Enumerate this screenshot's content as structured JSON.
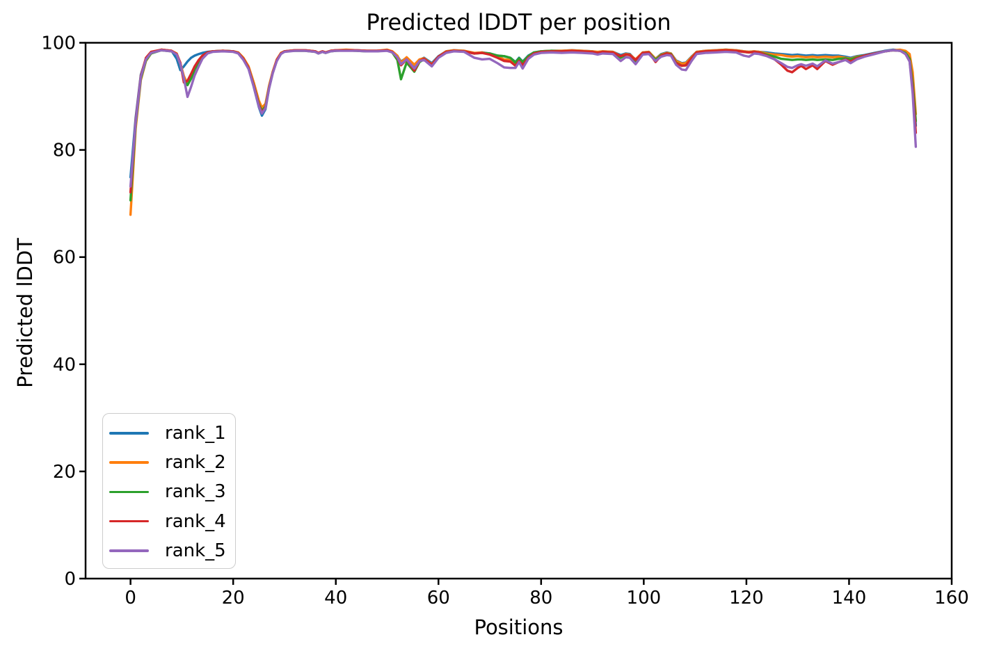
{
  "chart_data": {
    "type": "line",
    "title": "Predicted lDDT per position",
    "xlabel": "Positions",
    "ylabel": "Predicted lDDT",
    "xlim": [
      -8.76,
      160.0
    ],
    "ylim": [
      0,
      100
    ],
    "x_ticks": [
      0,
      20,
      40,
      60,
      80,
      100,
      120,
      140,
      160
    ],
    "y_ticks": [
      0,
      20,
      40,
      60,
      80,
      100
    ],
    "grid": false,
    "legend_position": "lower left",
    "x": [
      0,
      1,
      2,
      3,
      4,
      6,
      8,
      9,
      9.7,
      10.4,
      11.1,
      11.8,
      12.5,
      13.3,
      14,
      15,
      16,
      18,
      20,
      21,
      22,
      23,
      24,
      25,
      25.6,
      26.3,
      27,
      27.7,
      28.5,
      29.3,
      30,
      32,
      34,
      36,
      36.6,
      37.4,
      38,
      39,
      40,
      42,
      44,
      46,
      48,
      50,
      51,
      52,
      52.7,
      53.8,
      55.3,
      56.3,
      57.2,
      58.7,
      60,
      61.5,
      63,
      65,
      67,
      68.5,
      70,
      71.5,
      72.8,
      74,
      75,
      75.7,
      76.4,
      77.5,
      78.6,
      80,
      82,
      84,
      86,
      88,
      90,
      91,
      92,
      94,
      95.5,
      96.5,
      97.3,
      98.4,
      99.8,
      101,
      102.3,
      103.4,
      104.5,
      105.3,
      106.3,
      107.4,
      108.2,
      109.3,
      110.3,
      112,
      114,
      116,
      118,
      119.5,
      120.5,
      121.5,
      122.5,
      124,
      125.5,
      126.8,
      128,
      128.9,
      130,
      130.7,
      131.6,
      132.9,
      133.8,
      135.4,
      136.8,
      138,
      139.3,
      140.3,
      141.5,
      143,
      145,
      147,
      148.5,
      150,
      151,
      151.8,
      152.4,
      153
    ],
    "series": [
      {
        "name": "rank_1",
        "color": "#1f77b4",
        "values": [
          74.9,
          86.0,
          94.0,
          97.0,
          98.2,
          98.7,
          98.5,
          97.0,
          94.9,
          95.6,
          96.5,
          97.2,
          97.6,
          97.9,
          98.1,
          98.3,
          98.4,
          98.5,
          98.4,
          98.1,
          96.9,
          95.2,
          91.8,
          88.0,
          86.4,
          87.6,
          91.5,
          94.3,
          96.7,
          98.0,
          98.4,
          98.6,
          98.6,
          98.4,
          98.1,
          98.4,
          98.2,
          98.5,
          98.6,
          98.6,
          98.6,
          98.5,
          98.5,
          98.6,
          98.3,
          97.5,
          96.5,
          97.2,
          95.6,
          96.8,
          97.2,
          96.2,
          97.5,
          98.4,
          98.6,
          98.5,
          98.0,
          98.2,
          98.0,
          97.6,
          97.5,
          97.2,
          96.4,
          97.2,
          96.5,
          97.6,
          98.2,
          98.4,
          98.5,
          98.5,
          98.6,
          98.5,
          98.4,
          98.2,
          98.4,
          98.3,
          97.7,
          98.0,
          97.9,
          96.8,
          98.2,
          98.3,
          97.0,
          97.9,
          98.2,
          98.0,
          96.7,
          96.2,
          96.3,
          97.4,
          98.3,
          98.5,
          98.6,
          98.7,
          98.6,
          98.4,
          98.3,
          98.4,
          98.3,
          98.2,
          98.0,
          97.9,
          97.8,
          97.7,
          97.8,
          97.7,
          97.6,
          97.7,
          97.6,
          97.7,
          97.6,
          97.6,
          97.4,
          97.2,
          97.5,
          97.7,
          98.1,
          98.5,
          98.7,
          98.6,
          98.2,
          97.2,
          93.0,
          84.5
        ]
      },
      {
        "name": "rank_2",
        "color": "#ff7f0e",
        "values": [
          67.9,
          84.0,
          93.0,
          96.6,
          98.0,
          98.7,
          98.5,
          98.0,
          96.2,
          93.8,
          92.3,
          93.5,
          95.2,
          96.6,
          97.5,
          98.2,
          98.4,
          98.5,
          98.4,
          98.2,
          97.2,
          95.6,
          92.6,
          89.2,
          87.9,
          88.6,
          92.0,
          94.6,
          96.9,
          98.1,
          98.4,
          98.6,
          98.6,
          98.4,
          98.1,
          98.4,
          98.2,
          98.5,
          98.6,
          98.7,
          98.6,
          98.5,
          98.5,
          98.7,
          98.4,
          97.6,
          96.3,
          97.3,
          95.9,
          96.9,
          97.1,
          96.0,
          97.4,
          98.4,
          98.6,
          98.5,
          98.1,
          98.2,
          97.9,
          97.4,
          96.9,
          96.8,
          96.0,
          96.9,
          96.1,
          97.4,
          98.1,
          98.4,
          98.5,
          98.5,
          98.6,
          98.5,
          98.4,
          98.3,
          98.4,
          98.3,
          97.5,
          97.9,
          97.8,
          96.9,
          98.2,
          98.3,
          97.0,
          97.8,
          98.1,
          98.0,
          96.6,
          96.1,
          96.2,
          97.3,
          98.3,
          98.5,
          98.6,
          98.7,
          98.6,
          98.4,
          98.3,
          98.4,
          98.3,
          98.0,
          97.8,
          97.7,
          97.5,
          97.4,
          97.5,
          97.4,
          97.3,
          97.4,
          97.3,
          97.4,
          97.3,
          97.4,
          97.2,
          97.0,
          97.4,
          97.6,
          98.0,
          98.4,
          98.6,
          98.7,
          98.5,
          97.9,
          94.5,
          86.7
        ]
      },
      {
        "name": "rank_3",
        "color": "#2ca02c",
        "values": [
          70.6,
          84.8,
          93.3,
          96.7,
          98.0,
          98.6,
          98.4,
          97.8,
          95.9,
          93.2,
          92.1,
          93.3,
          95.0,
          96.4,
          97.4,
          98.1,
          98.4,
          98.5,
          98.4,
          98.1,
          97.0,
          95.3,
          92.1,
          88.5,
          87.3,
          88.1,
          91.7,
          94.4,
          96.7,
          98.0,
          98.4,
          98.5,
          98.5,
          98.3,
          98.0,
          98.3,
          98.1,
          98.4,
          98.5,
          98.6,
          98.5,
          98.4,
          98.4,
          98.6,
          98.2,
          96.8,
          93.2,
          96.3,
          94.6,
          96.4,
          96.9,
          95.9,
          97.3,
          98.3,
          98.5,
          98.4,
          98.0,
          98.1,
          98.0,
          97.6,
          97.5,
          97.2,
          96.3,
          97.1,
          96.4,
          97.5,
          98.2,
          98.4,
          98.5,
          98.4,
          98.5,
          98.4,
          98.3,
          98.1,
          98.3,
          98.2,
          97.2,
          97.8,
          97.7,
          96.4,
          98.1,
          98.2,
          96.8,
          97.7,
          98.0,
          97.9,
          96.3,
          95.7,
          95.8,
          97.1,
          98.2,
          98.4,
          98.5,
          98.6,
          98.5,
          98.3,
          98.2,
          98.3,
          98.2,
          97.8,
          97.4,
          97.0,
          96.9,
          96.8,
          96.9,
          96.9,
          96.8,
          96.9,
          96.8,
          96.9,
          96.8,
          97.0,
          97.1,
          96.9,
          97.3,
          97.6,
          98.0,
          98.4,
          98.6,
          98.5,
          98.1,
          97.0,
          92.5,
          85.4
        ]
      },
      {
        "name": "rank_4",
        "color": "#d62728",
        "values": [
          72.1,
          85.5,
          93.8,
          97.2,
          98.3,
          98.7,
          98.5,
          97.9,
          96.3,
          92.6,
          92.9,
          94.2,
          95.6,
          96.8,
          97.6,
          98.2,
          98.4,
          98.5,
          98.4,
          98.1,
          97.0,
          95.3,
          92.0,
          88.3,
          87.0,
          87.9,
          91.6,
          94.4,
          96.8,
          98.0,
          98.4,
          98.6,
          98.6,
          98.4,
          98.1,
          98.4,
          98.2,
          98.5,
          98.6,
          98.6,
          98.6,
          98.5,
          98.5,
          98.6,
          98.3,
          97.2,
          95.8,
          96.9,
          94.8,
          96.6,
          97.0,
          95.9,
          97.4,
          98.3,
          98.5,
          98.4,
          98.0,
          98.1,
          97.8,
          97.2,
          96.6,
          96.5,
          95.7,
          96.6,
          95.8,
          97.2,
          98.0,
          98.3,
          98.4,
          98.4,
          98.5,
          98.4,
          98.3,
          98.1,
          98.3,
          98.2,
          97.5,
          97.8,
          97.7,
          96.8,
          98.1,
          98.2,
          96.4,
          97.6,
          98.0,
          97.8,
          96.2,
          95.7,
          95.8,
          97.1,
          98.2,
          98.4,
          98.5,
          98.6,
          98.5,
          98.3,
          98.2,
          98.3,
          98.2,
          97.6,
          96.9,
          95.9,
          94.8,
          94.5,
          95.3,
          95.7,
          95.1,
          95.8,
          95.1,
          96.6,
          95.9,
          96.4,
          96.9,
          96.5,
          97.1,
          97.6,
          98.0,
          98.4,
          98.6,
          98.5,
          97.9,
          96.6,
          91.5,
          83.2
        ]
      },
      {
        "name": "rank_5",
        "color": "#9467bd",
        "values": [
          73.2,
          85.2,
          93.6,
          96.9,
          98.1,
          98.6,
          98.4,
          97.8,
          96.0,
          93.4,
          89.9,
          91.8,
          93.9,
          95.6,
          97.0,
          98.0,
          98.3,
          98.4,
          98.3,
          98.0,
          96.8,
          95.1,
          91.8,
          88.1,
          86.8,
          87.8,
          91.5,
          94.3,
          96.6,
          97.9,
          98.3,
          98.5,
          98.5,
          98.3,
          98.0,
          98.3,
          98.1,
          98.4,
          98.5,
          98.5,
          98.5,
          98.4,
          98.4,
          98.5,
          98.2,
          97.3,
          96.0,
          96.9,
          95.2,
          96.6,
          96.8,
          95.6,
          97.2,
          98.1,
          98.4,
          98.3,
          97.2,
          96.9,
          97.0,
          96.2,
          95.4,
          95.3,
          95.3,
          96.4,
          95.2,
          97.0,
          97.8,
          98.1,
          98.2,
          98.1,
          98.2,
          98.1,
          98.0,
          97.8,
          98.0,
          97.9,
          96.6,
          97.3,
          97.2,
          96.0,
          97.8,
          97.9,
          96.6,
          97.4,
          97.7,
          97.6,
          95.9,
          95.0,
          94.9,
          96.6,
          97.9,
          98.1,
          98.2,
          98.3,
          98.2,
          97.6,
          97.4,
          98.0,
          97.9,
          97.5,
          96.9,
          96.2,
          95.5,
          95.3,
          95.8,
          96.0,
          95.7,
          96.1,
          95.6,
          96.7,
          96.1,
          96.4,
          96.8,
          96.2,
          96.9,
          97.4,
          97.9,
          98.4,
          98.6,
          98.5,
          97.9,
          96.5,
          90.5,
          80.6
        ]
      }
    ]
  }
}
